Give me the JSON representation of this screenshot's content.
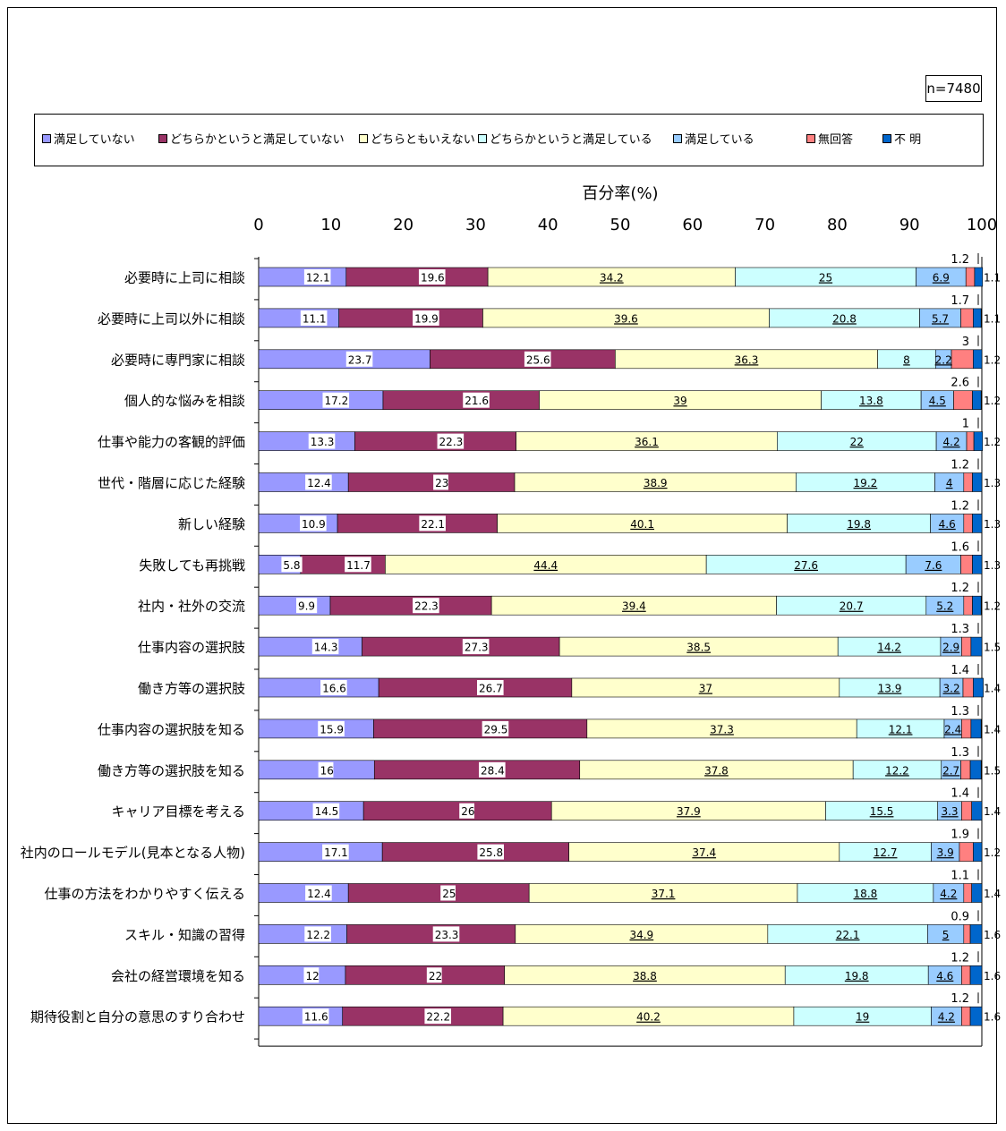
{
  "n_label": "n=7480",
  "legend": [
    {
      "label": "満足していない",
      "color": "#9999ff"
    },
    {
      "label": "どちらかというと満足していない",
      "color": "#993366"
    },
    {
      "label": "どちらともいえない",
      "color": "#ffffcc"
    },
    {
      "label": "どちらかというと満足している",
      "color": "#ccffff"
    },
    {
      "label": "満足している",
      "color": "#99ccff"
    },
    {
      "label": "無回答",
      "color": "#ff8080"
    },
    {
      "label": "不 明",
      "color": "#0066cc"
    }
  ],
  "chart_data": {
    "type": "bar",
    "orientation": "horizontal",
    "stacked": true,
    "xlabel": "百分率(%)",
    "xlim": [
      0,
      100
    ],
    "xticks": [
      "0",
      "10",
      "20",
      "30",
      "40",
      "50",
      "60",
      "70",
      "80",
      "90",
      "100"
    ],
    "categories": [
      "必要時に上司に相談",
      "必要時に上司以外に相談",
      "必要時に専門家に相談",
      "個人的な悩みを相談",
      "仕事や能力の客観的評価",
      "世代・階層に応じた経験",
      "新しい経験",
      "失敗しても再挑戦",
      "社内・社外の交流",
      "仕事内容の選択肢",
      "働き方等の選択肢",
      "仕事内容の選択肢を知る",
      "働き方等の選択肢を知る",
      "キャリア目標を考える",
      "社内のロールモデル(見本となる人物)",
      "仕事の方法をわかりやすく伝える",
      "スキル・知識の習得",
      "会社の経営環境を知る",
      "期待役割と自分の意思のすり合わせ"
    ],
    "series": [
      {
        "name": "満足していない",
        "color": "#9999ff",
        "values": [
          12.1,
          11.1,
          23.7,
          17.2,
          13.3,
          12.4,
          10.9,
          5.8,
          9.9,
          14.3,
          16.6,
          15.9,
          16,
          14.5,
          17.1,
          12.4,
          12.2,
          12,
          11.6
        ]
      },
      {
        "name": "どちらかというと満足していない",
        "color": "#993366",
        "values": [
          19.6,
          19.9,
          25.6,
          21.6,
          22.3,
          23,
          22.1,
          11.7,
          22.3,
          27.3,
          26.7,
          29.5,
          28.4,
          26,
          25.8,
          25,
          23.3,
          22,
          22.2
        ]
      },
      {
        "name": "どちらともいえない",
        "color": "#ffffcc",
        "values": [
          34.2,
          39.6,
          36.3,
          39,
          36.1,
          38.9,
          40.1,
          44.4,
          39.4,
          38.5,
          37,
          37.3,
          37.8,
          37.9,
          37.4,
          37.1,
          34.9,
          38.8,
          40.2
        ]
      },
      {
        "name": "どちらかというと満足している",
        "color": "#ccffff",
        "values": [
          25,
          20.8,
          8,
          13.8,
          22,
          19.2,
          19.8,
          27.6,
          20.7,
          14.2,
          13.9,
          12.1,
          12.2,
          15.5,
          12.7,
          18.8,
          22.1,
          19.8,
          19
        ]
      },
      {
        "name": "満足している",
        "color": "#99ccff",
        "values": [
          6.9,
          5.7,
          2.2,
          4.5,
          4.2,
          4,
          4.6,
          7.6,
          5.2,
          2.9,
          3.2,
          2.4,
          2.7,
          3.3,
          3.9,
          4.2,
          5,
          4.6,
          4.2
        ]
      },
      {
        "name": "無回答",
        "color": "#ff8080",
        "values": [
          1.2,
          1.7,
          3,
          2.6,
          1,
          1.2,
          1.2,
          1.6,
          1.2,
          1.3,
          1.4,
          1.3,
          1.3,
          1.4,
          1.9,
          1.1,
          0.9,
          1.2,
          1.2
        ]
      },
      {
        "name": "不 明",
        "color": "#0066cc",
        "values": [
          1.1,
          1.1,
          1.2,
          1.2,
          1.2,
          1.3,
          1.3,
          1.3,
          1.2,
          1.5,
          1.4,
          1.4,
          1.5,
          1.4,
          1.2,
          1.4,
          1.6,
          1.6,
          1.6
        ]
      }
    ]
  }
}
